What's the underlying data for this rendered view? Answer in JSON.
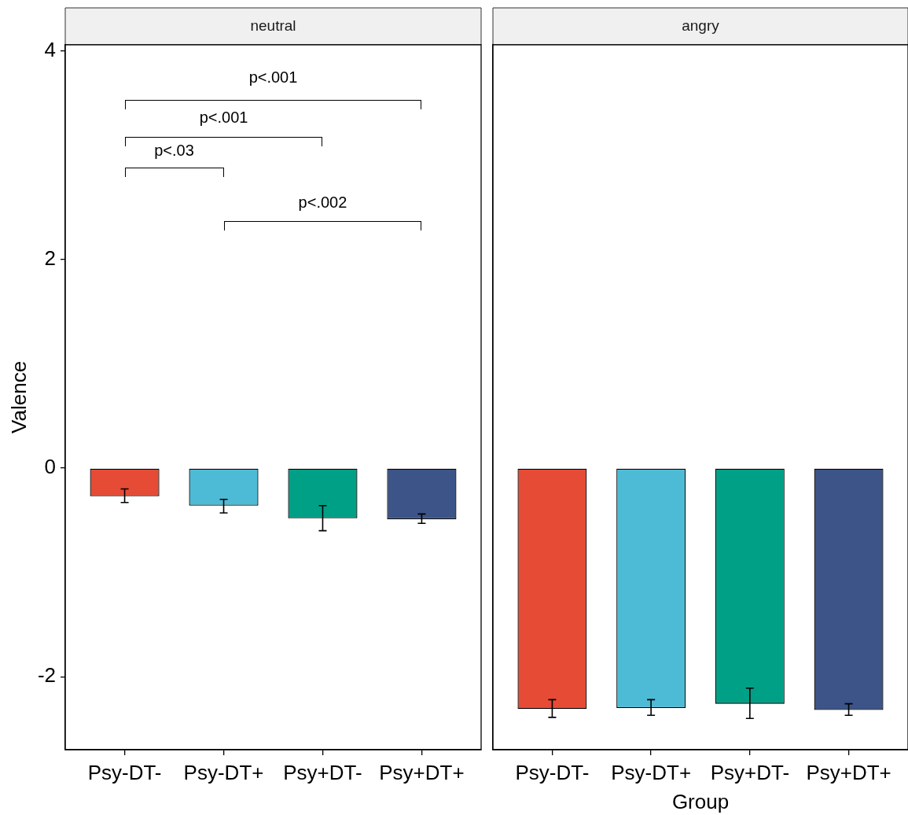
{
  "chart_data": [
    {
      "type": "bar",
      "title": "neutral",
      "ylabel": "Valence",
      "categories": [
        "Psy-DT-",
        "Psy-DT+",
        "Psy+DT-",
        "Psy+DT+"
      ],
      "values": [
        -0.27,
        -0.36,
        -0.48,
        -0.49
      ],
      "colors": [
        "#e64b35",
        "#4dbbd5",
        "#00a087",
        "#3c5488"
      ],
      "errors": [
        [
          -0.33,
          -0.2
        ],
        [
          -0.43,
          -0.3
        ],
        [
          -0.6,
          -0.36
        ],
        [
          -0.53,
          -0.44
        ]
      ],
      "ylim": [
        -2.7,
        4.06
      ],
      "yticks": [
        -2,
        0,
        2,
        4
      ],
      "annotations": [
        "p<.001",
        "p<.001",
        "p<.03",
        "p<.002"
      ]
    },
    {
      "type": "bar",
      "title": "angry",
      "xlabel": "Group",
      "categories": [
        "Psy-DT-",
        "Psy-DT+",
        "Psy+DT-",
        "Psy+DT+"
      ],
      "values": [
        -2.31,
        -2.3,
        -2.26,
        -2.32
      ],
      "colors": [
        "#e64b35",
        "#4dbbd5",
        "#00a087",
        "#3c5488"
      ],
      "errors": [
        [
          -2.39,
          -2.22
        ],
        [
          -2.37,
          -2.22
        ],
        [
          -2.4,
          -2.11
        ],
        [
          -2.37,
          -2.26
        ]
      ],
      "ylim": [
        -2.7,
        4.06
      ],
      "yticks": [
        -2,
        0,
        2,
        4
      ],
      "tick_labels": "x"
    }
  ]
}
